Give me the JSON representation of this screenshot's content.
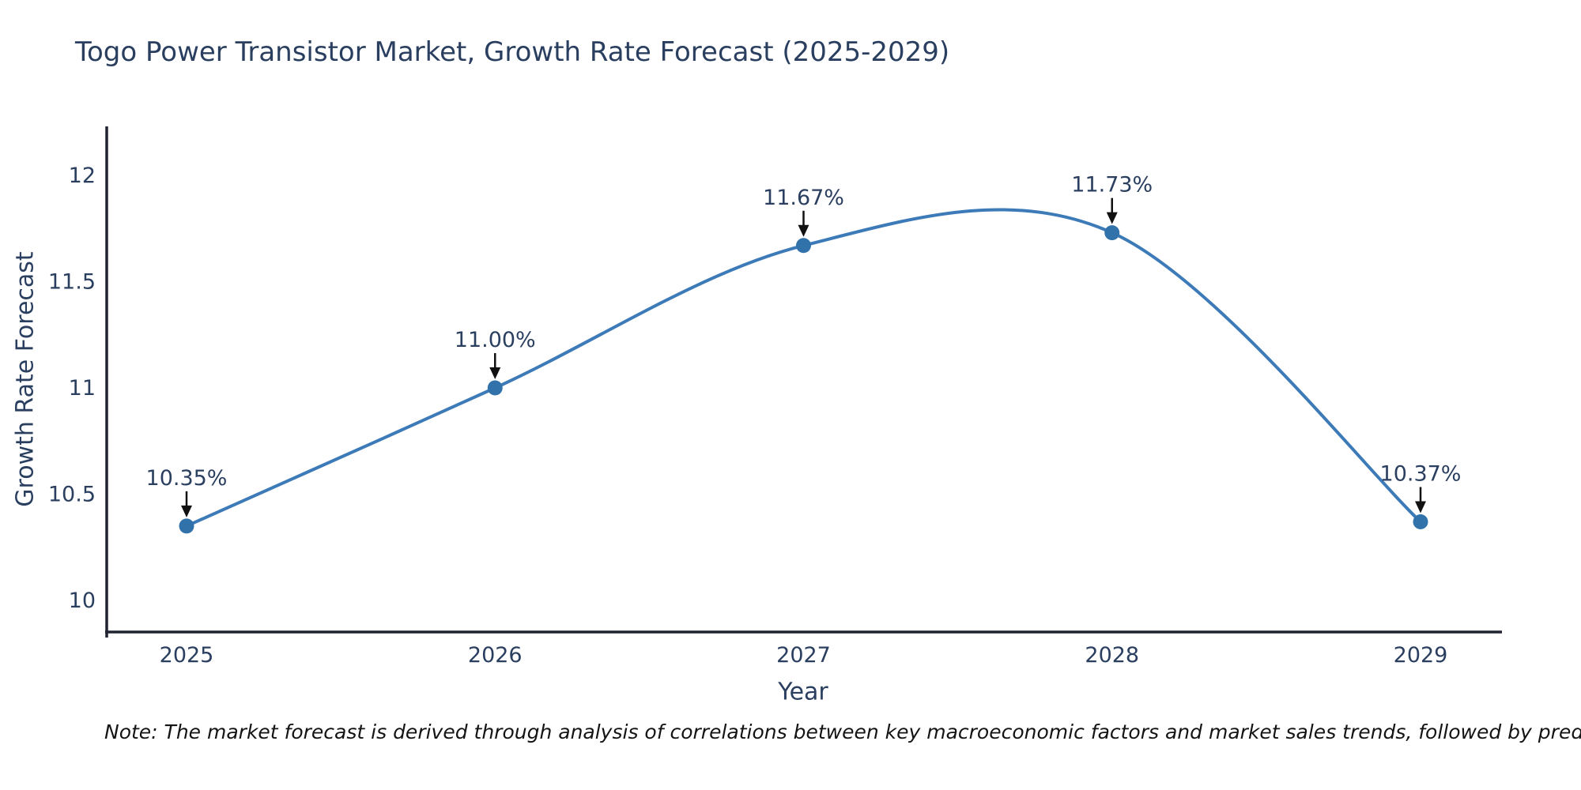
{
  "chart_data": {
    "type": "line",
    "title": "Togo Power Transistor Market, Growth Rate Forecast (2025-2029)",
    "xlabel": "Year",
    "ylabel": "Growth Rate Forecast",
    "categories": [
      "2025",
      "2026",
      "2027",
      "2028",
      "2029"
    ],
    "series": [
      {
        "name": "Growth Rate Forecast",
        "values": [
          10.35,
          11.0,
          11.67,
          11.73,
          10.37
        ],
        "point_labels": [
          "10.35%",
          "11.00%",
          "11.67%",
          "11.73%",
          "10.37%"
        ]
      }
    ],
    "yticks": [
      10,
      10.5,
      11,
      11.5,
      12
    ],
    "ytick_labels": [
      "10",
      "10.5",
      "11",
      "11.5",
      "12"
    ],
    "ylim": [
      9.85,
      12.23
    ],
    "grid": false,
    "legend_position": "none",
    "line_shape": "spline",
    "marker_style": "circle",
    "annotation_arrows": true,
    "colors": {
      "line": "#3d7ab8",
      "marker": "#3272ab",
      "axis": "#1f2430",
      "text": "#2a3f5f",
      "arrow": "#111111",
      "background": "#ffffff"
    },
    "note": "Note: The market forecast is derived through analysis of correlations between key macroeconomic factors and market sales trends, followed by predictive modeling to project future sales."
  }
}
